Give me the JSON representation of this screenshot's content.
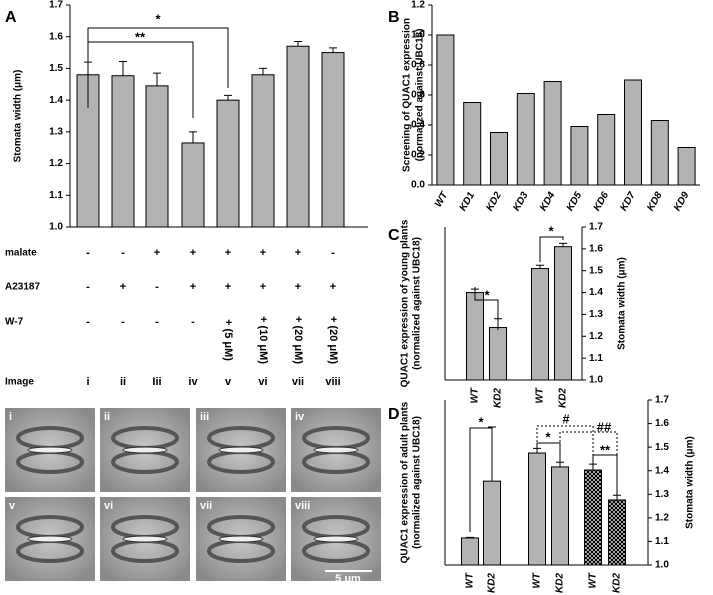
{
  "chart_data": [
    {
      "type": "bar",
      "title": "A",
      "y_label": [
        "Stomata width (μm)"
      ],
      "ylim": [
        1.0,
        1.7
      ],
      "yticks": [
        {
          "value": 1.0,
          "label": "1.0"
        },
        1.1,
        1.2,
        1.3,
        1.4,
        1.5,
        1.6,
        1.7
      ],
      "series": [
        {
          "color": "#b3b3b3",
          "values": [
            1.48,
            1.477,
            1.445,
            1.265,
            1.4,
            1.48,
            1.57,
            1.55
          ],
          "errors": [
            0.04,
            0.045,
            0.04,
            0.035,
            0.015,
            0.02,
            0.015,
            0.015
          ]
        }
      ],
      "annotations": [
        "*",
        "**"
      ],
      "table": {
        "rows": [
          {
            "label": "malate",
            "cells": [
              "-",
              "-",
              "+",
              "+",
              "+",
              "+",
              "+",
              "-"
            ]
          },
          {
            "label": "A23187",
            "cells": [
              "-",
              "+",
              "-",
              "+",
              "+",
              "+",
              "+",
              "+"
            ]
          },
          {
            "label": "W-7",
            "cells": [
              "-",
              "-",
              "-",
              "-",
              "+ (5 μM)",
              "+ (10 μM)",
              "+ (20 μM)",
              "+ (20 μM)"
            ]
          },
          {
            "label": "Image",
            "cells": [
              "i",
              "ii",
              "Iii",
              "iv",
              "v",
              "vi",
              "vii",
              "viii"
            ]
          }
        ]
      },
      "images": {
        "labels": [
          "i",
          "ii",
          "iii",
          "iv",
          "v",
          "vi",
          "vii",
          "viii"
        ],
        "scale_bar": "5 μm"
      }
    },
    {
      "type": "bar",
      "title": "B",
      "y_label": [
        "Screening of QUAC1 expression",
        "(normalized against UBC18)"
      ],
      "categories": [
        "WT",
        "KD1",
        "KD2",
        "KD3",
        "KD4",
        "KD5",
        "KD6",
        "KD7",
        "KD8",
        "KD9"
      ],
      "ylim": [
        0,
        1.2
      ],
      "yticks": [
        {
          "value": 0,
          "label": "0.0"
        },
        0.2,
        0.4,
        0.6,
        0.8,
        {
          "value": 1.0,
          "label": "1.0"
        },
        1.2
      ],
      "series": [
        {
          "color": "#b3b3b3",
          "values": [
            1.0,
            0.55,
            0.35,
            0.61,
            0.69,
            0.39,
            0.47,
            0.7,
            0.43,
            0.25
          ]
        }
      ]
    },
    {
      "type": "bar",
      "title": "C",
      "y_label": [
        "QUAC1 expression of young plants",
        "(normalized against UBC18)"
      ],
      "y2_label": [
        "Stomata width (μm)"
      ],
      "categories": [
        "WT",
        "KD2",
        "WT",
        "KD2"
      ],
      "ylim": [
        0,
        1.75
      ],
      "y2lim": [
        1.0,
        1.7
      ],
      "y2ticks": [
        {
          "value": 1.0,
          "label": "1.0"
        },
        1.1,
        1.2,
        1.3,
        1.4,
        1.5,
        1.6,
        1.7
      ],
      "series": [
        {
          "color": "#b3b3b3",
          "values": [
            1.0,
            0.6,
            null,
            null
          ],
          "errors": [
            0.04,
            0.1,
            null,
            null
          ]
        },
        {
          "color": "#b3b3b3",
          "axis": "y2",
          "values": [
            null,
            null,
            1.51,
            1.61
          ],
          "errors": [
            null,
            null,
            0.015,
            0.015
          ]
        }
      ],
      "annotations": [
        "*",
        "*"
      ]
    },
    {
      "type": "bar",
      "title": "D",
      "y_label": [
        "QUAC1 expression of adult plants",
        "(normalized against UBC18)"
      ],
      "y2_label": [
        "Stomata width (μm)"
      ],
      "categories": [
        "WT",
        "KD2",
        "WT",
        "KD2",
        "WT",
        "KD2"
      ],
      "ylim": [
        0,
        6.1
      ],
      "y2lim": [
        1.0,
        1.7
      ],
      "y2ticks": [
        {
          "value": 1.0,
          "label": "1.0"
        },
        1.1,
        1.2,
        1.3,
        1.4,
        1.5,
        1.6,
        1.7
      ],
      "series": [
        {
          "color": "#b3b3b3",
          "values": [
            1.0,
            3.1,
            null,
            null,
            null,
            null
          ],
          "errors": [
            0.02,
            2.0,
            null,
            null,
            null,
            null
          ]
        },
        {
          "color": "#b3b3b3",
          "axis": "y2",
          "values": [
            null,
            null,
            1.475,
            1.416,
            null,
            null
          ],
          "errors": [
            null,
            null,
            0.02,
            0.02,
            null,
            null
          ]
        },
        {
          "color": "#b3b3b3",
          "axis": "y2",
          "hatch": true,
          "values": [
            null,
            null,
            null,
            null,
            1.403,
            1.276
          ],
          "errors": [
            null,
            null,
            null,
            null,
            0.025,
            0.02
          ]
        }
      ],
      "annotations": [
        "*",
        "*",
        "#",
        "##",
        "**"
      ]
    }
  ]
}
